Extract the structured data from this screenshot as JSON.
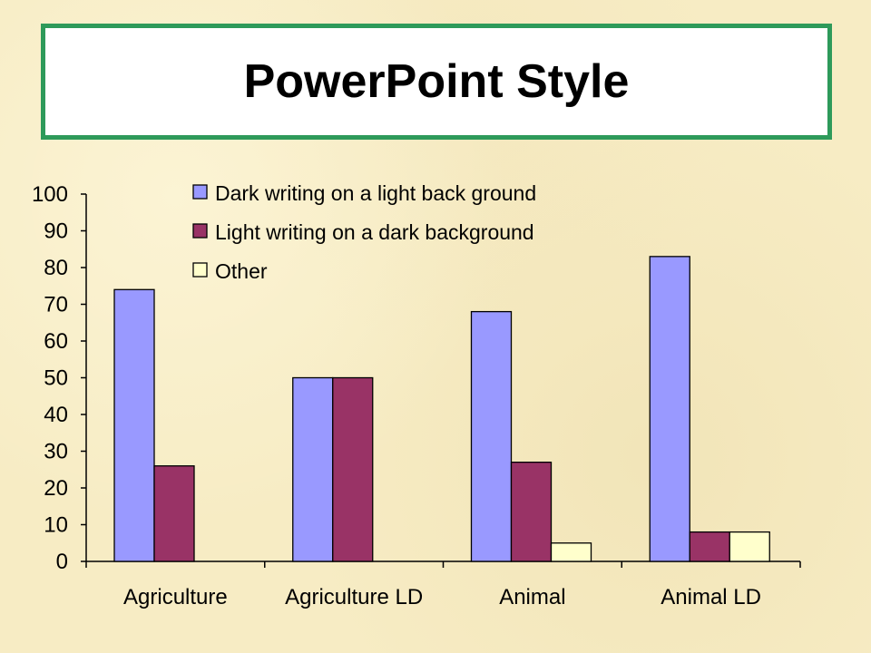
{
  "title": "PowerPoint Style",
  "colors": {
    "background": "#f7ecc4",
    "title_border": "#2e9a5a",
    "series": [
      "#9999ff",
      "#993366",
      "#ffffcc"
    ]
  },
  "chart_data": {
    "type": "bar",
    "categories": [
      "Agriculture",
      "Agriculture LD",
      "Animal",
      "Animal LD"
    ],
    "series": [
      {
        "name": "Dark writing on a light back ground",
        "values": [
          74,
          50,
          68,
          83
        ]
      },
      {
        "name": "Light writing on a dark background",
        "values": [
          26,
          50,
          27,
          8
        ]
      },
      {
        "name": "Other",
        "values": [
          0,
          0,
          5,
          8
        ]
      }
    ],
    "ylim": [
      0,
      100
    ],
    "yticks": [
      "0",
      "10",
      "20",
      "30",
      "40",
      "50",
      "60",
      "70",
      "80",
      "90",
      "100"
    ],
    "grid": false,
    "legend_position": "top"
  }
}
